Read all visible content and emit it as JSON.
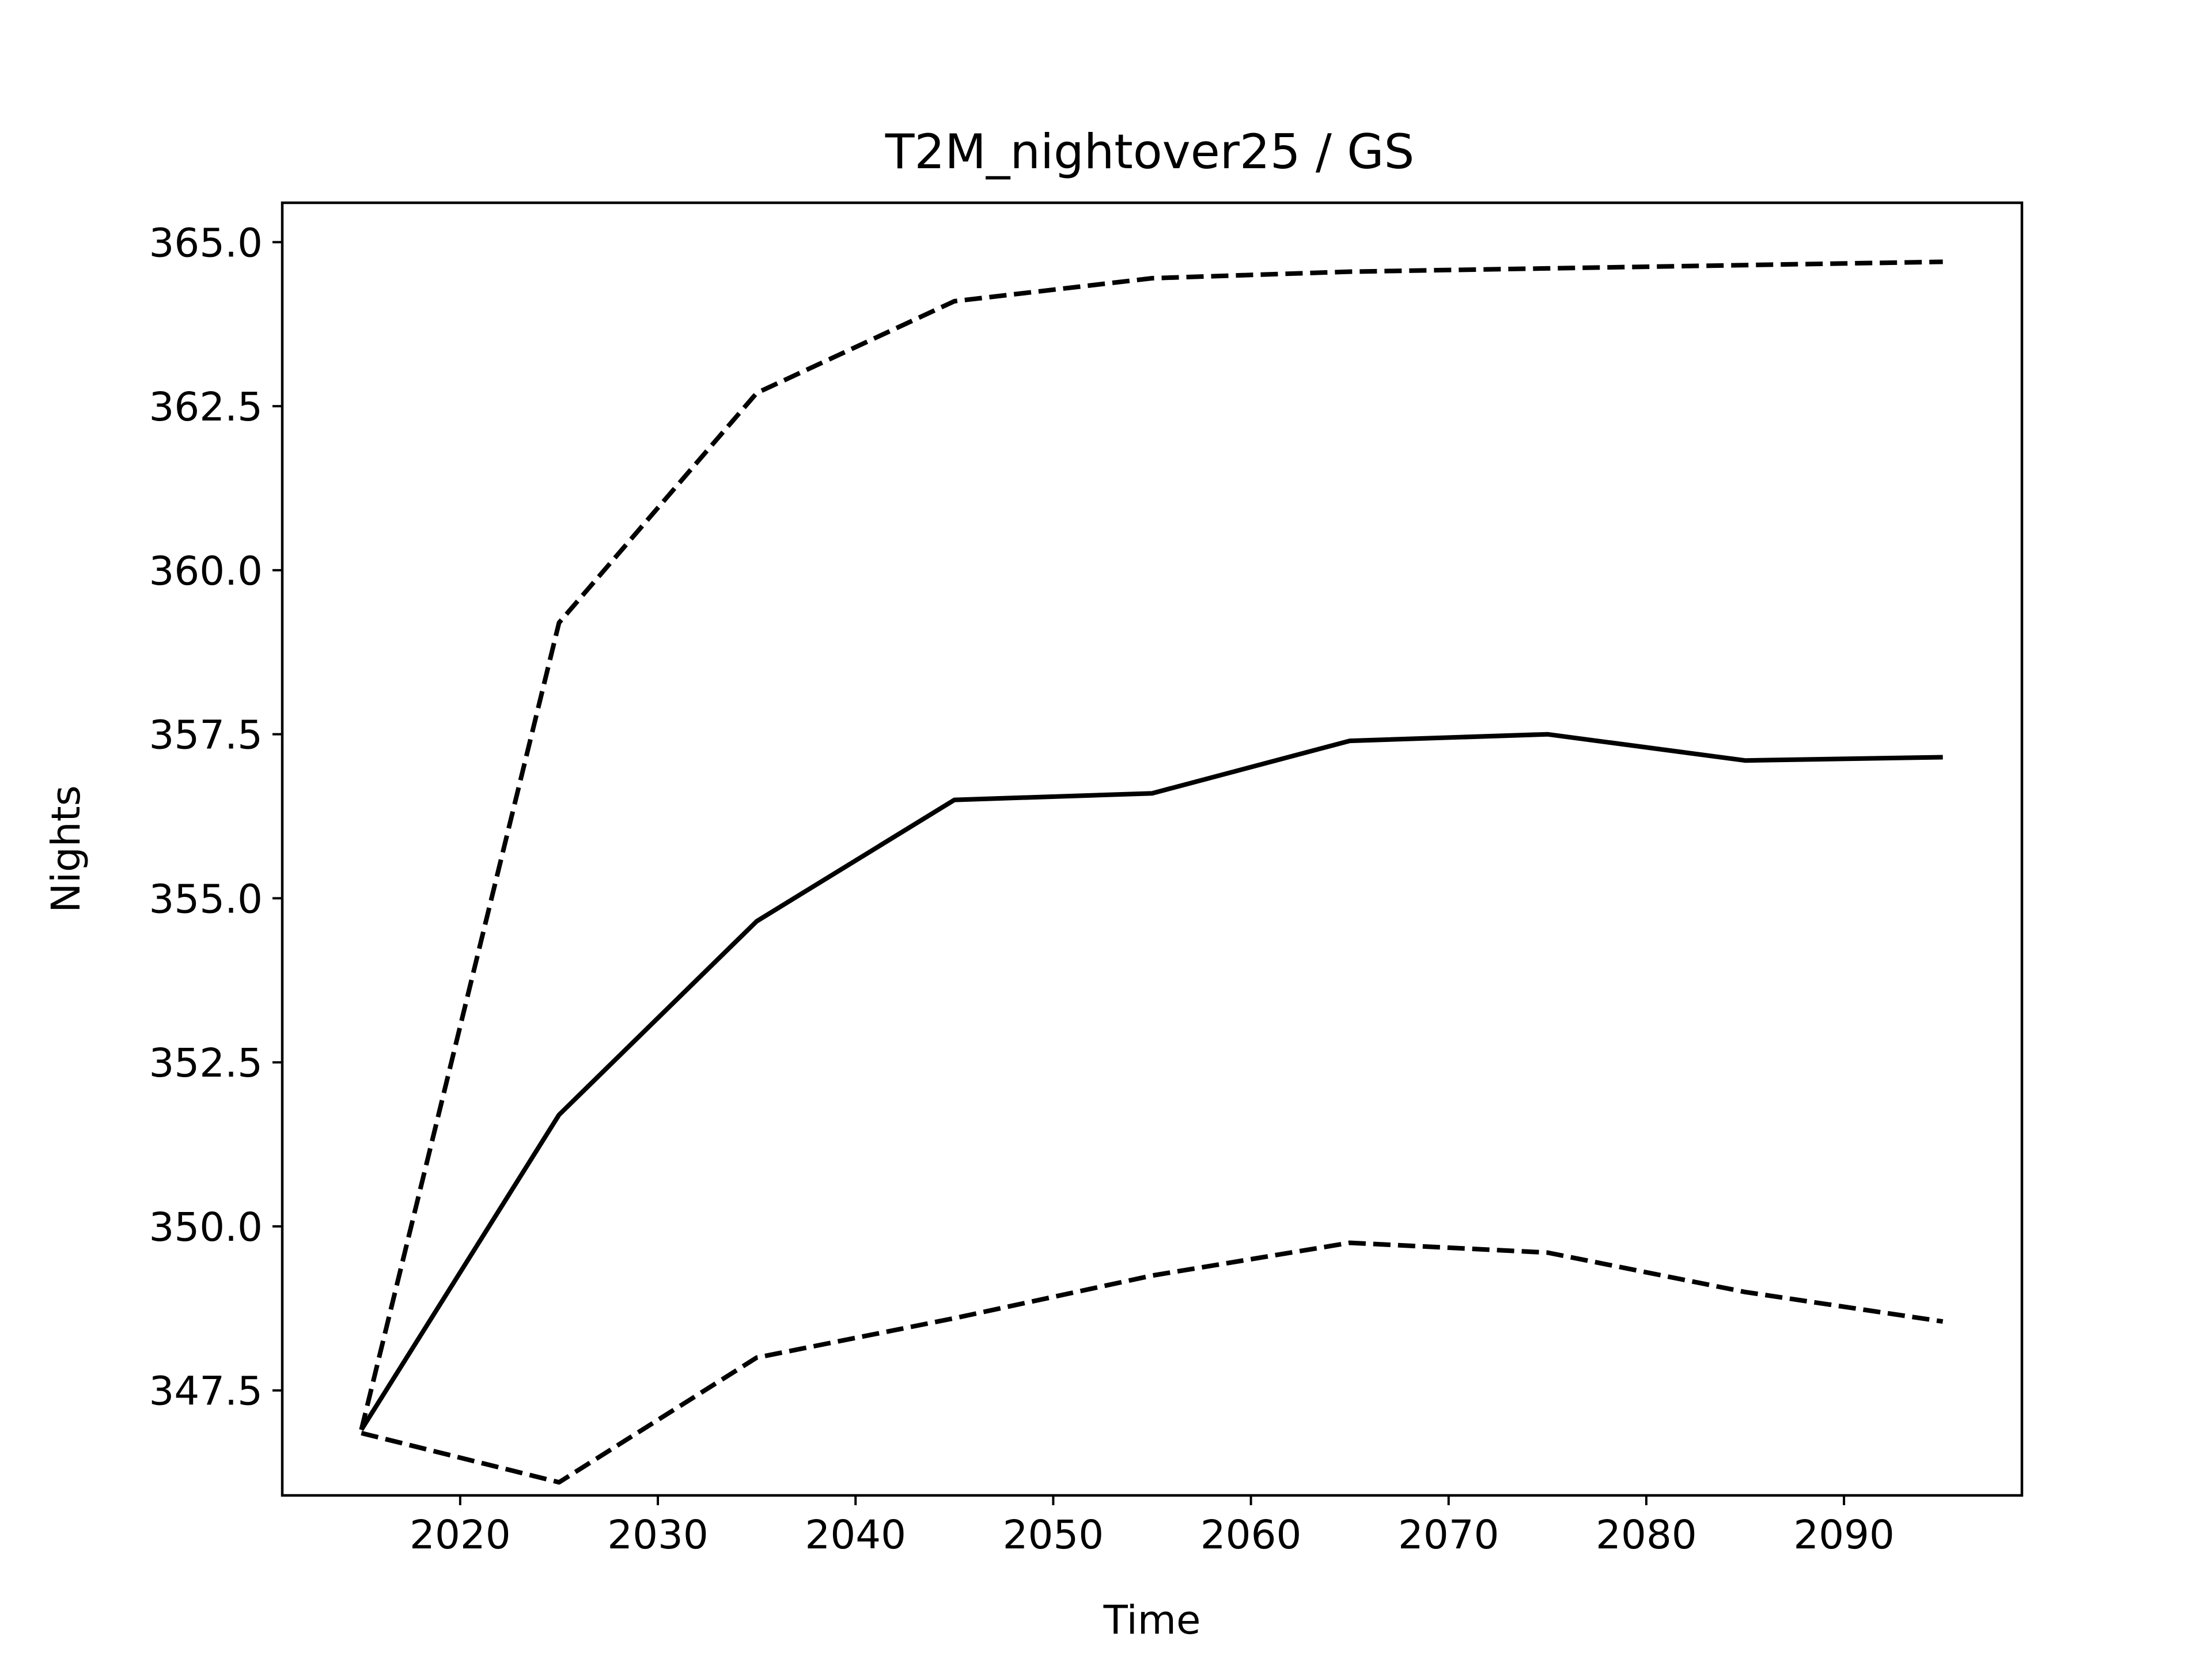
{
  "chart_data": {
    "type": "line",
    "title": "T2M_nightover25 / GS",
    "xlabel": "Time",
    "ylabel": "Nights",
    "xlim": [
      2011,
      2099
    ],
    "ylim": [
      345.9,
      365.6
    ],
    "xticks": [
      2020,
      2030,
      2040,
      2050,
      2060,
      2070,
      2080,
      2090
    ],
    "yticks": [
      347.5,
      350.0,
      352.5,
      355.0,
      357.5,
      360.0,
      362.5,
      365.0
    ],
    "x": [
      2015,
      2025,
      2035,
      2045,
      2055,
      2065,
      2075,
      2085,
      2095
    ],
    "series": [
      {
        "style": "dashed",
        "color": "#000000",
        "values": [
          346.9,
          359.2,
          362.7,
          364.1,
          364.45,
          364.55,
          364.6,
          364.65,
          364.7
        ]
      },
      {
        "style": "solid",
        "color": "#000000",
        "values": [
          346.9,
          351.7,
          354.65,
          356.5,
          356.6,
          357.4,
          357.5,
          357.1,
          357.15
        ]
      },
      {
        "style": "dashed",
        "color": "#000000",
        "values": [
          346.85,
          346.1,
          348.0,
          348.6,
          349.25,
          349.75,
          349.6,
          349.0,
          348.55
        ]
      }
    ],
    "grid": false,
    "legend": "none"
  }
}
